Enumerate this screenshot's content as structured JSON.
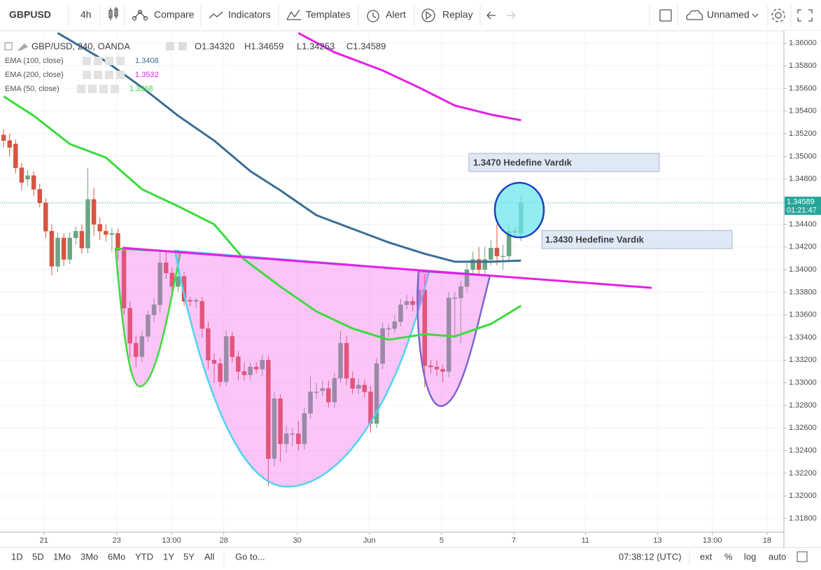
{
  "toolbar": {
    "symbol": "GBPUSD",
    "interval": "4h",
    "buttons": [
      "Compare",
      "Indicators",
      "Templates",
      "Alert",
      "Replay"
    ],
    "layout_name": "Unnamed"
  },
  "bottom_bar": {
    "ranges": [
      "1D",
      "5D",
      "1Mo",
      "3Mo",
      "6Mo",
      "YTD",
      "1Y",
      "5Y",
      "All"
    ],
    "goto": "Go to...",
    "clock": "07:38:12 (UTC)",
    "options": [
      "ext",
      "%",
      "log",
      "auto"
    ]
  },
  "chart_data": {
    "type": "candlestick",
    "title": "GBP/USD, 240, OANDA",
    "ohlc_legend": [
      "O1.34320",
      "H1.34659",
      "L1.34253",
      "C1.34589"
    ],
    "up_color": "#6ba583",
    "down_color": "#d75442",
    "x": [
      0,
      1,
      2,
      3,
      4,
      5,
      6,
      7,
      8,
      9,
      10,
      11,
      12,
      13,
      14,
      15,
      16,
      17,
      18,
      19,
      20,
      21,
      22,
      23,
      24,
      25,
      26,
      27,
      28,
      29,
      30,
      31,
      32,
      33,
      34,
      35,
      36,
      37,
      38,
      39,
      40,
      41,
      42,
      43,
      44,
      45,
      46,
      47,
      48,
      49,
      50,
      51,
      52,
      53,
      54,
      55,
      56,
      57,
      58,
      59,
      60,
      61,
      62,
      63,
      64,
      65,
      66,
      67,
      68,
      69,
      70,
      71,
      72,
      73,
      74,
      75,
      76,
      77,
      78,
      79,
      80,
      81,
      82,
      83,
      84,
      85,
      86
    ],
    "open": [
      1.3519,
      1.3514,
      1.3511,
      1.349,
      1.348,
      1.3483,
      1.3471,
      1.3459,
      1.3434,
      1.3403,
      1.3428,
      1.3409,
      1.3428,
      1.3434,
      1.3419,
      1.3462,
      1.344,
      1.3434,
      1.3431,
      1.3432,
      1.3417,
      1.3366,
      1.3335,
      1.3323,
      1.3341,
      1.336,
      1.3369,
      1.3406,
      1.3397,
      1.3385,
      1.3394,
      1.3373,
      1.3372,
      1.3372,
      1.3348,
      1.332,
      1.3317,
      1.3301,
      1.3341,
      1.3323,
      1.331,
      1.3307,
      1.3314,
      1.3312,
      1.332,
      1.3233,
      1.3286,
      1.3246,
      1.3255,
      1.3255,
      1.3246,
      1.3273,
      1.3292,
      1.3293,
      1.3295,
      1.3283,
      1.3304,
      1.3335,
      1.3304,
      1.3295,
      1.3298,
      1.3292,
      1.3264,
      1.3317,
      1.3348,
      1.3348,
      1.3354,
      1.3369,
      1.3372,
      1.3369,
      1.3382,
      1.3315,
      1.3314,
      1.3312,
      1.331,
      1.3375,
      1.3375,
      1.3385,
      1.34,
      1.3409,
      1.34,
      1.3409,
      1.3419,
      1.3412,
      1.3412,
      1.3434,
      1.3432
    ],
    "high": [
      1.3524,
      1.352,
      1.3515,
      1.3494,
      1.3488,
      1.3487,
      1.3476,
      1.3463,
      1.344,
      1.3433,
      1.3432,
      1.3433,
      1.3438,
      1.344,
      1.349,
      1.3472,
      1.3446,
      1.344,
      1.3437,
      1.3436,
      1.342,
      1.3372,
      1.3342,
      1.3346,
      1.3364,
      1.3375,
      1.3418,
      1.3416,
      1.3402,
      1.34,
      1.3398,
      1.3376,
      1.3375,
      1.3376,
      1.3354,
      1.3326,
      1.3322,
      1.3346,
      1.3345,
      1.3328,
      1.3318,
      1.3318,
      1.3318,
      1.3325,
      1.3324,
      1.3292,
      1.329,
      1.3262,
      1.326,
      1.3266,
      1.3278,
      1.3306,
      1.33,
      1.3302,
      1.3302,
      1.3309,
      1.3346,
      1.3341,
      1.331,
      1.3304,
      1.3303,
      1.3297,
      1.3322,
      1.3353,
      1.3352,
      1.336,
      1.3374,
      1.3378,
      1.3376,
      1.3396,
      1.3396,
      1.332,
      1.332,
      1.3316,
      1.338,
      1.338,
      1.339,
      1.3406,
      1.3416,
      1.342,
      1.342,
      1.3426,
      1.344,
      1.3422,
      1.344,
      1.3438,
      1.34659
    ],
    "low": [
      1.3508,
      1.35,
      1.3485,
      1.347,
      1.3474,
      1.3465,
      1.3455,
      1.3428,
      1.3395,
      1.3398,
      1.3403,
      1.3405,
      1.3422,
      1.3414,
      1.3414,
      1.343,
      1.3426,
      1.3425,
      1.3416,
      1.3409,
      1.336,
      1.3322,
      1.3314,
      1.3318,
      1.3336,
      1.3354,
      1.3362,
      1.3392,
      1.3379,
      1.338,
      1.3368,
      1.3368,
      1.3366,
      1.334,
      1.3312,
      1.33,
      1.3296,
      1.3297,
      1.3318,
      1.3302,
      1.3302,
      1.3302,
      1.3308,
      1.3306,
      1.3209,
      1.3226,
      1.323,
      1.3238,
      1.3244,
      1.324,
      1.3241,
      1.3268,
      1.3286,
      1.3288,
      1.3278,
      1.3278,
      1.33,
      1.3298,
      1.329,
      1.329,
      1.3287,
      1.3256,
      1.326,
      1.3312,
      1.334,
      1.3344,
      1.335,
      1.3365,
      1.3363,
      1.3365,
      1.3296,
      1.3308,
      1.3306,
      1.33,
      1.3305,
      1.334,
      1.3335,
      1.338,
      1.3395,
      1.3395,
      1.3396,
      1.3404,
      1.3404,
      1.34,
      1.3408,
      1.3428,
      1.34253
    ],
    "close": [
      1.3514,
      1.3508,
      1.349,
      1.3477,
      1.3483,
      1.3471,
      1.3459,
      1.3434,
      1.3403,
      1.3428,
      1.3409,
      1.3428,
      1.3434,
      1.3419,
      1.3462,
      1.344,
      1.3434,
      1.3431,
      1.3432,
      1.3417,
      1.3366,
      1.3335,
      1.3323,
      1.3341,
      1.336,
      1.3369,
      1.3406,
      1.3397,
      1.3385,
      1.3394,
      1.3372,
      1.3372,
      1.3373,
      1.3348,
      1.332,
      1.3317,
      1.3301,
      1.3341,
      1.3323,
      1.331,
      1.3307,
      1.3314,
      1.3312,
      1.332,
      1.3233,
      1.3286,
      1.3246,
      1.3255,
      1.3255,
      1.3246,
      1.3273,
      1.3292,
      1.3292,
      1.3295,
      1.3283,
      1.3304,
      1.3335,
      1.3304,
      1.3295,
      1.3298,
      1.3292,
      1.3264,
      1.3317,
      1.3348,
      1.3348,
      1.3354,
      1.3369,
      1.3372,
      1.3369,
      1.3382,
      1.3315,
      1.3314,
      1.3312,
      1.331,
      1.3375,
      1.3375,
      1.3385,
      1.34,
      1.3409,
      1.34,
      1.3409,
      1.3419,
      1.3412,
      1.3412,
      1.3434,
      1.3433,
      1.34589
    ],
    "xlim": [
      -0.6,
      129.7
    ],
    "ylim": [
      1.3168,
      1.3611
    ],
    "grid": true,
    "xticks": [
      {
        "value": 6.7,
        "label": "21"
      },
      {
        "value": 18.8,
        "label": "23"
      },
      {
        "value": 27.9,
        "label": "13:00"
      },
      {
        "value": 36.6,
        "label": "28"
      },
      {
        "value": 48.8,
        "label": "30"
      },
      {
        "value": 60.8,
        "label": "Jun"
      },
      {
        "value": 72.8,
        "label": "5"
      },
      {
        "value": 84.8,
        "label": "7"
      },
      {
        "value": 96.7,
        "label": "11"
      },
      {
        "value": 108.7,
        "label": "13"
      },
      {
        "value": 117.8,
        "label": "13:00"
      },
      {
        "value": 126.9,
        "label": "18"
      }
    ],
    "yticks": [
      {
        "value": 1.36,
        "label": "1.36000"
      },
      {
        "value": 1.358,
        "label": "1.35800"
      },
      {
        "value": 1.356,
        "label": "1.35600"
      },
      {
        "value": 1.354,
        "label": "1.35400"
      },
      {
        "value": 1.352,
        "label": "1.35200"
      },
      {
        "value": 1.35,
        "label": "1.35000"
      },
      {
        "value": 1.348,
        "label": "1.34800"
      },
      {
        "value": 1.346,
        "label": "1.34600"
      },
      {
        "value": 1.344,
        "label": "1.34400"
      },
      {
        "value": 1.342,
        "label": "1.34200"
      },
      {
        "value": 1.34,
        "label": "1.34000"
      },
      {
        "value": 1.338,
        "label": "1.33800"
      },
      {
        "value": 1.336,
        "label": "1.33600"
      },
      {
        "value": 1.334,
        "label": "1.33400"
      },
      {
        "value": 1.332,
        "label": "1.33200"
      },
      {
        "value": 1.33,
        "label": "1.33000"
      },
      {
        "value": 1.328,
        "label": "1.32800"
      },
      {
        "value": 1.326,
        "label": "1.32600"
      },
      {
        "value": 1.324,
        "label": "1.32400"
      },
      {
        "value": 1.322,
        "label": "1.32200"
      },
      {
        "value": 1.32,
        "label": "1.32000"
      },
      {
        "value": 1.318,
        "label": "1.31800"
      }
    ],
    "price_tag": {
      "price": 1.34589,
      "countdown": "01:21:47"
    },
    "indicators": [
      {
        "name": "EMA (100, close)",
        "color": "#3c6e95",
        "x": [
          9,
          17,
          23,
          29,
          35,
          41,
          46,
          52,
          58,
          64,
          70,
          75,
          81,
          86
        ],
        "values": [
          1.3609,
          1.3584,
          1.3561,
          1.3536,
          1.3514,
          1.3487,
          1.347,
          1.3448,
          1.3436,
          1.3424,
          1.3414,
          1.3407,
          1.3407,
          1.3408
        ]
      },
      {
        "name": "EMA (200, close)",
        "color": "#e61ee6",
        "x": [
          49,
          55,
          63,
          69,
          75,
          81,
          86
        ],
        "values": [
          1.3609,
          1.3592,
          1.3576,
          1.3561,
          1.3545,
          1.3537,
          1.3532
        ]
      },
      {
        "name": "EMA (50, close)",
        "color": "#3bdb3b",
        "x": [
          0,
          5,
          11,
          17,
          23,
          29,
          35,
          40,
          46,
          52,
          58,
          64,
          70,
          75,
          81,
          86
        ],
        "values": [
          1.3553,
          1.3536,
          1.3511,
          1.3499,
          1.3471,
          1.3456,
          1.344,
          1.3409,
          1.3385,
          1.3363,
          1.3348,
          1.3338,
          1.3343,
          1.3341,
          1.3352,
          1.3368
        ]
      }
    ],
    "annotations": [
      {
        "text": "1.3470 Hedefine Vardık",
        "color": "#e91ee0"
      },
      {
        "text": "1.3430 Hedefine Vardık",
        "color": "#1326b0"
      }
    ]
  }
}
